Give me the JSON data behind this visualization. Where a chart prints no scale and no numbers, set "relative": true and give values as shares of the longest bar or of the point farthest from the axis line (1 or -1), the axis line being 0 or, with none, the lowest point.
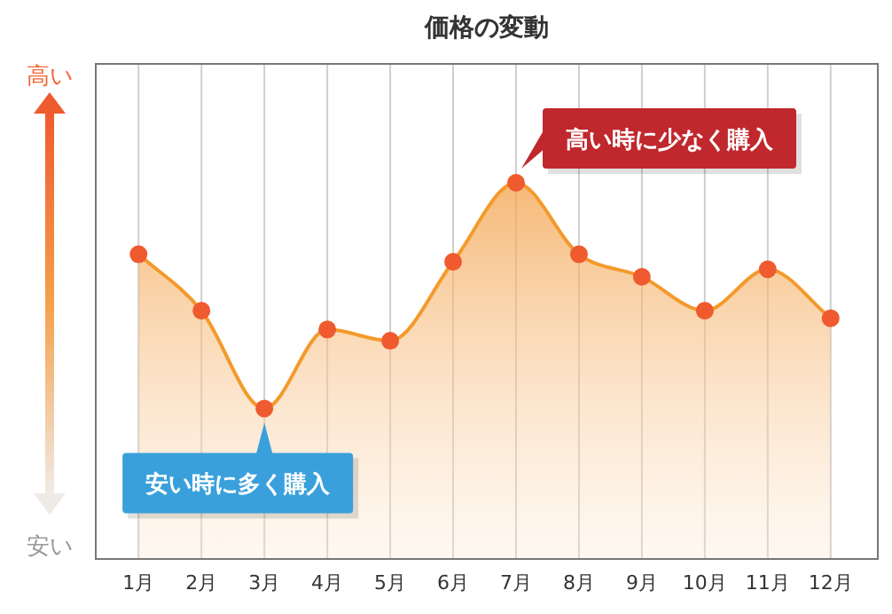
{
  "chart_data": {
    "type": "area",
    "title": "価格の変動",
    "relative": true,
    "categories": [
      "1月",
      "2月",
      "3月",
      "4月",
      "5月",
      "6月",
      "7月",
      "8月",
      "9月",
      "10月",
      "11月",
      "12月"
    ],
    "series": [
      {
        "color": "#f39a2b",
        "values": [
          0.81,
          0.66,
          0.4,
          0.61,
          0.58,
          0.79,
          1,
          0.81,
          0.75,
          0.66,
          0.77,
          0.64
        ]
      }
    ],
    "annotations": [
      {
        "text": "高い時に少なく購入",
        "x": "7月",
        "y": 1
      },
      {
        "text": "安い時に多く購入",
        "x": "3月",
        "y": 0.4
      },
      "高い",
      "安い"
    ],
    "grid": "x",
    "marker": "circle"
  }
}
